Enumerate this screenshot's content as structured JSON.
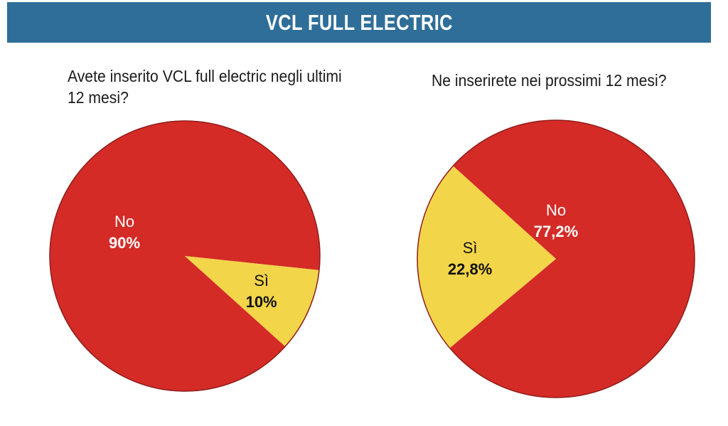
{
  "header": {
    "title": "VCL FULL ELECTRIC"
  },
  "colors": {
    "banner": "#2f6e98",
    "no": "#d42b27",
    "si": "#f3d54a",
    "outline": "#8f1d1b"
  },
  "chart_data": [
    {
      "type": "pie",
      "title": "Avete inserito VCL full electric negli ultimi 12 mesi?",
      "slices": [
        {
          "label": "No",
          "value": 90,
          "display": "90%",
          "color": "#d42b27",
          "text_color": "#ffffff"
        },
        {
          "label": "Sì",
          "value": 10,
          "display": "10%",
          "color": "#f3d54a",
          "text_color": "#111111"
        }
      ]
    },
    {
      "type": "pie",
      "title": "Ne inserirete nei prossimi 12 mesi?",
      "slices": [
        {
          "label": "No",
          "value": 77.2,
          "display": "77,2%",
          "color": "#d42b27",
          "text_color": "#ffffff"
        },
        {
          "label": "Sì",
          "value": 22.8,
          "display": "22,8%",
          "color": "#f3d54a",
          "text_color": "#111111"
        }
      ]
    }
  ]
}
